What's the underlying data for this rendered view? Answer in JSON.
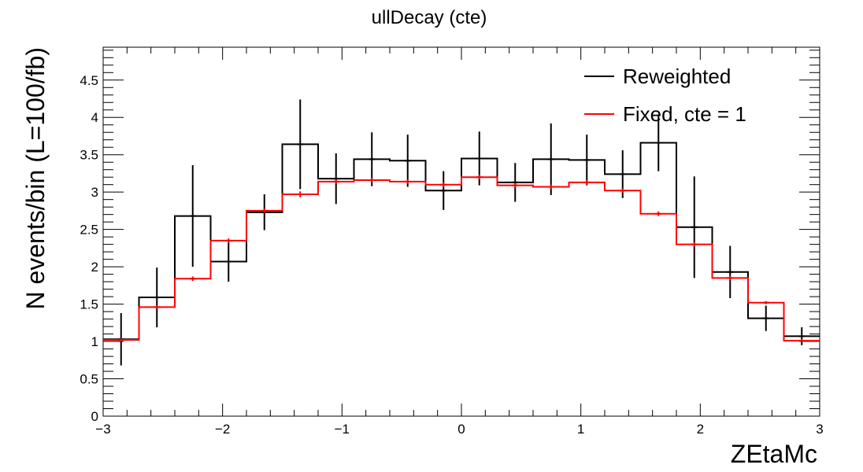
{
  "chart_data": {
    "type": "line",
    "title": "ullDecay (cte)",
    "xlabel": "ZEtaMc",
    "ylabel": "N events/bin (L=100/fb)",
    "xlim": [
      -3,
      3
    ],
    "ylim": [
      0,
      4.94
    ],
    "x_ticks": [
      -3,
      -2,
      -1,
      0,
      1,
      2,
      3
    ],
    "x_tick_labels": [
      "−3",
      "−2",
      "−1",
      "0",
      "1",
      "2",
      "3"
    ],
    "y_ticks": [
      0,
      0.5,
      1,
      1.5,
      2,
      2.5,
      3,
      3.5,
      4,
      4.5
    ],
    "y_tick_labels": [
      "0",
      "0.5",
      "1",
      "1.5",
      "2",
      "2.5",
      "3",
      "3.5",
      "4",
      "4.5"
    ],
    "bin_edges": [
      -3,
      -2.7,
      -2.4,
      -2.1,
      -1.8,
      -1.5,
      -1.2,
      -0.9,
      -0.6,
      -0.3,
      0,
      0.3,
      0.6,
      0.9,
      1.2,
      1.5,
      1.8,
      2.1,
      2.4,
      2.7,
      3
    ],
    "legend_position": "top-right",
    "grid": false,
    "series": [
      {
        "name": "Reweighted",
        "color": "#000000",
        "values": [
          1.03,
          1.59,
          2.68,
          2.07,
          2.73,
          3.64,
          3.18,
          3.44,
          3.42,
          3.02,
          3.45,
          3.13,
          3.44,
          3.43,
          3.24,
          3.66,
          2.53,
          1.93,
          1.31,
          1.07
        ],
        "errors": [
          0.35,
          0.4,
          0.68,
          0.27,
          0.24,
          0.6,
          0.34,
          0.36,
          0.35,
          0.26,
          0.36,
          0.26,
          0.48,
          0.34,
          0.32,
          0.38,
          0.68,
          0.35,
          0.17,
          0.12
        ]
      },
      {
        "name": "Fixed, cte = 1",
        "color": "#ff0000",
        "values": [
          1.02,
          1.46,
          1.84,
          2.35,
          2.75,
          2.97,
          3.14,
          3.16,
          3.14,
          3.1,
          3.2,
          3.09,
          3.07,
          3.13,
          3.02,
          2.71,
          2.3,
          1.85,
          1.52,
          1.01
        ],
        "errors": [
          0.02,
          0.02,
          0.03,
          0.03,
          0.03,
          0.04,
          0.03,
          0.03,
          0.03,
          0.03,
          0.03,
          0.03,
          0.03,
          0.03,
          0.03,
          0.03,
          0.03,
          0.03,
          0.02,
          0.02
        ]
      }
    ]
  }
}
